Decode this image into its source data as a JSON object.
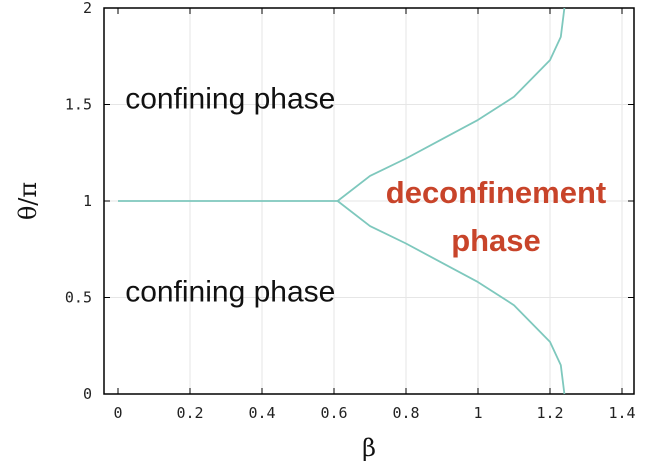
{
  "chart_data": {
    "type": "line",
    "title": "",
    "xlabel": "β",
    "ylabel": "θ/π",
    "xlim": [
      0,
      1.45
    ],
    "ylim": [
      0,
      2
    ],
    "grid": true,
    "xticks": [
      0,
      0.2,
      0.4,
      0.6,
      0.8,
      1,
      1.2,
      1.4
    ],
    "xtick_labels": [
      "0",
      "0.2",
      "0.4",
      "0.6",
      "0.8",
      "1",
      "1.2",
      "1.4"
    ],
    "yticks": [
      0,
      0.5,
      1,
      1.5,
      2
    ],
    "ytick_labels": [
      "0",
      "0.5",
      "1",
      "1.5",
      "2"
    ],
    "line_color": "#7ec8bd",
    "series": [
      {
        "name": "",
        "points": [
          [
            0,
            1
          ],
          [
            0.59,
            1
          ],
          [
            0.61,
            1.0
          ],
          [
            0.7,
            1.13
          ],
          [
            0.8,
            1.22
          ],
          [
            0.9,
            1.32
          ],
          [
            1.0,
            1.42
          ],
          [
            1.1,
            1.54
          ],
          [
            1.2,
            1.73
          ],
          [
            1.23,
            1.85
          ],
          [
            1.24,
            2.0
          ]
        ]
      },
      {
        "name": "",
        "points": [
          [
            0.61,
            1.0
          ],
          [
            0.7,
            0.87
          ],
          [
            0.8,
            0.78
          ],
          [
            0.9,
            0.68
          ],
          [
            1.0,
            0.58
          ],
          [
            1.1,
            0.46
          ],
          [
            1.2,
            0.27
          ],
          [
            1.23,
            0.15
          ],
          [
            1.24,
            0.0
          ]
        ]
      }
    ],
    "annotations": [
      {
        "text": "confining phase",
        "x": 0.02,
        "y": 1.48,
        "color": "#111111"
      },
      {
        "text": "confining phase",
        "x": 0.02,
        "y": 0.48,
        "color": "#111111"
      },
      {
        "text": "deconfinement",
        "x": 1.05,
        "y": 0.99,
        "color": "#c8442a"
      },
      {
        "text": "phase",
        "x": 1.05,
        "y": 0.74,
        "color": "#c8442a"
      }
    ]
  }
}
